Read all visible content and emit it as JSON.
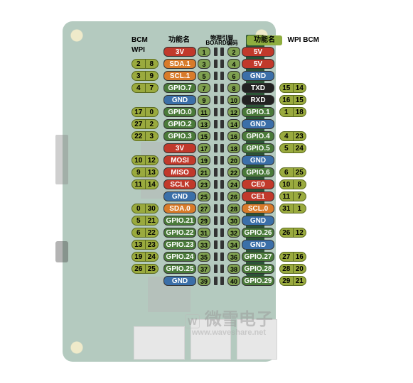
{
  "headers": {
    "bcm": "BCM",
    "wpi": "WPI",
    "func_l": "功能名",
    "board": "物理引脚\nBOARD编码",
    "func_r": "功能名"
  },
  "colors": {
    "olive": "#9aaa3e",
    "olive_border": "#5a6a1e",
    "red": "#c1392b",
    "orange": "#d87b2a",
    "blue": "#3b6fa8",
    "darkgreen": "#4a7a3a",
    "black": "#222222",
    "white": "#ffffff",
    "phys_green": "#7fa050",
    "header_bg": "#8fae3f"
  },
  "watermark": {
    "main": "微雪电子",
    "logo": "W",
    "sub": "www.waveshare.net"
  },
  "pins": [
    {
      "l_bcm": "",
      "l_wpi": "",
      "l_func": "3V",
      "l_func_c": "red",
      "l_phys": "1",
      "r_phys": "2",
      "r_func": "5V",
      "r_func_c": "red",
      "r_wpi": "",
      "r_bcm": ""
    },
    {
      "l_bcm": "2",
      "l_wpi": "8",
      "l_func": "SDA.1",
      "l_func_c": "orange",
      "l_phys": "3",
      "r_phys": "4",
      "r_func": "5V",
      "r_func_c": "red",
      "r_wpi": "",
      "r_bcm": ""
    },
    {
      "l_bcm": "3",
      "l_wpi": "9",
      "l_func": "SCL.1",
      "l_func_c": "orange",
      "l_phys": "5",
      "r_phys": "6",
      "r_func": "GND",
      "r_func_c": "blue",
      "r_wpi": "",
      "r_bcm": ""
    },
    {
      "l_bcm": "4",
      "l_wpi": "7",
      "l_func": "GPIO.7",
      "l_func_c": "darkgreen",
      "l_phys": "7",
      "r_phys": "8",
      "r_func": "TXD",
      "r_func_c": "black",
      "r_wpi": "15",
      "r_bcm": "14"
    },
    {
      "l_bcm": "",
      "l_wpi": "",
      "l_func": "GND",
      "l_func_c": "blue",
      "l_phys": "9",
      "r_phys": "10",
      "r_func": "RXD",
      "r_func_c": "black",
      "r_wpi": "16",
      "r_bcm": "15"
    },
    {
      "l_bcm": "17",
      "l_wpi": "0",
      "l_func": "GPIO.0",
      "l_func_c": "darkgreen",
      "l_phys": "11",
      "r_phys": "12",
      "r_func": "GPIO.1",
      "r_func_c": "darkgreen",
      "r_wpi": "1",
      "r_bcm": "18"
    },
    {
      "l_bcm": "27",
      "l_wpi": "2",
      "l_func": "GPIO.2",
      "l_func_c": "darkgreen",
      "l_phys": "13",
      "r_phys": "14",
      "r_func": "GND",
      "r_func_c": "blue",
      "r_wpi": "",
      "r_bcm": ""
    },
    {
      "l_bcm": "22",
      "l_wpi": "3",
      "l_func": "GPIO.3",
      "l_func_c": "darkgreen",
      "l_phys": "15",
      "r_phys": "16",
      "r_func": "GPIO.4",
      "r_func_c": "darkgreen",
      "r_wpi": "4",
      "r_bcm": "23"
    },
    {
      "l_bcm": "",
      "l_wpi": "",
      "l_func": "3V",
      "l_func_c": "red",
      "l_phys": "17",
      "r_phys": "18",
      "r_func": "GPIO.5",
      "r_func_c": "darkgreen",
      "r_wpi": "5",
      "r_bcm": "24"
    },
    {
      "l_bcm": "10",
      "l_wpi": "12",
      "l_func": "MOSI",
      "l_func_c": "red",
      "l_phys": "19",
      "r_phys": "20",
      "r_func": "GND",
      "r_func_c": "blue",
      "r_wpi": "",
      "r_bcm": ""
    },
    {
      "l_bcm": "9",
      "l_wpi": "13",
      "l_func": "MISO",
      "l_func_c": "red",
      "l_phys": "21",
      "r_phys": "22",
      "r_func": "GPIO.6",
      "r_func_c": "darkgreen",
      "r_wpi": "6",
      "r_bcm": "25"
    },
    {
      "l_bcm": "11",
      "l_wpi": "14",
      "l_func": "SCLK",
      "l_func_c": "red",
      "l_phys": "23",
      "r_phys": "24",
      "r_func": "CE0",
      "r_func_c": "red",
      "r_wpi": "10",
      "r_bcm": "8"
    },
    {
      "l_bcm": "",
      "l_wpi": "",
      "l_func": "GND",
      "l_func_c": "blue",
      "l_phys": "25",
      "r_phys": "26",
      "r_func": "CE1",
      "r_func_c": "red",
      "r_wpi": "11",
      "r_bcm": "7"
    },
    {
      "l_bcm": "0",
      "l_wpi": "30",
      "l_func": "SDA.0",
      "l_func_c": "orange",
      "l_phys": "27",
      "r_phys": "28",
      "r_func": "SCL.0",
      "r_func_c": "orange",
      "r_wpi": "31",
      "r_bcm": "1"
    },
    {
      "l_bcm": "5",
      "l_wpi": "21",
      "l_func": "GPIO.21",
      "l_func_c": "darkgreen",
      "l_phys": "29",
      "r_phys": "30",
      "r_func": "GND",
      "r_func_c": "blue",
      "r_wpi": "",
      "r_bcm": ""
    },
    {
      "l_bcm": "6",
      "l_wpi": "22",
      "l_func": "GPIO.22",
      "l_func_c": "darkgreen",
      "l_phys": "31",
      "r_phys": "32",
      "r_func": "GPIO.26",
      "r_func_c": "darkgreen",
      "r_wpi": "26",
      "r_bcm": "12"
    },
    {
      "l_bcm": "13",
      "l_wpi": "23",
      "l_func": "GPIO.23",
      "l_func_c": "darkgreen",
      "l_phys": "33",
      "r_phys": "34",
      "r_func": "GND",
      "r_func_c": "blue",
      "r_wpi": "",
      "r_bcm": ""
    },
    {
      "l_bcm": "19",
      "l_wpi": "24",
      "l_func": "GPIO.24",
      "l_func_c": "darkgreen",
      "l_phys": "35",
      "r_phys": "36",
      "r_func": "GPIO.27",
      "r_func_c": "darkgreen",
      "r_wpi": "27",
      "r_bcm": "16"
    },
    {
      "l_bcm": "26",
      "l_wpi": "25",
      "l_func": "GPIO.25",
      "l_func_c": "darkgreen",
      "l_phys": "37",
      "r_phys": "38",
      "r_func": "GPIO.28",
      "r_func_c": "darkgreen",
      "r_wpi": "28",
      "r_bcm": "20"
    },
    {
      "l_bcm": "",
      "l_wpi": "",
      "l_func": "GND",
      "l_func_c": "blue",
      "l_phys": "39",
      "r_phys": "40",
      "r_func": "GPIO.29",
      "r_func_c": "darkgreen",
      "r_wpi": "29",
      "r_bcm": "21"
    }
  ]
}
